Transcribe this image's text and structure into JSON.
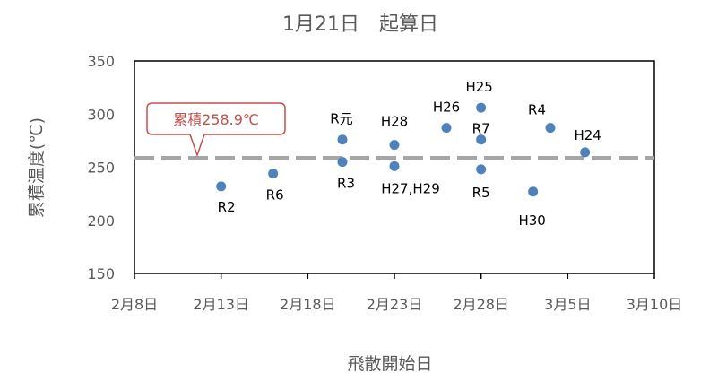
{
  "chart_data": {
    "type": "scatter",
    "title": "1月21日　起算日",
    "xlabel": "飛散開始日",
    "ylabel": "累積温度(℃)",
    "x_ticks": [
      "2月8日",
      "2月13日",
      "2月18日",
      "2月23日",
      "2月28日",
      "3月5日",
      "3月10日"
    ],
    "y_ticks": [
      "150",
      "200",
      "250",
      "300",
      "350"
    ],
    "ylim": [
      150,
      350
    ],
    "grid": false,
    "reference_line": {
      "y": 258.9,
      "label": "累積258.9℃",
      "style": "dashed",
      "color": "#A6A6A6"
    },
    "marker_color": "#4F81BD",
    "points": [
      {
        "label": "R2",
        "x": "2月13日",
        "y": 232
      },
      {
        "label": "R6",
        "x": "2月16日",
        "y": 244
      },
      {
        "label": "R元",
        "x": "2月20日",
        "y": 276
      },
      {
        "label": "R3",
        "x": "2月20日",
        "y": 255
      },
      {
        "label": "H28",
        "x": "2月23日",
        "y": 271
      },
      {
        "label": "H27,H29",
        "x": "2月23日",
        "y": 251
      },
      {
        "label": "H26",
        "x": "2月26日",
        "y": 287
      },
      {
        "label": "H25",
        "x": "2月28日",
        "y": 306
      },
      {
        "label": "R7",
        "x": "2月28日",
        "y": 276
      },
      {
        "label": "R5",
        "x": "2月28日",
        "y": 248
      },
      {
        "label": "H30",
        "x": "3月3日",
        "y": 227
      },
      {
        "label": "R4",
        "x": "3月4日",
        "y": 287
      },
      {
        "label": "H24",
        "x": "3月6日",
        "y": 264
      }
    ]
  }
}
